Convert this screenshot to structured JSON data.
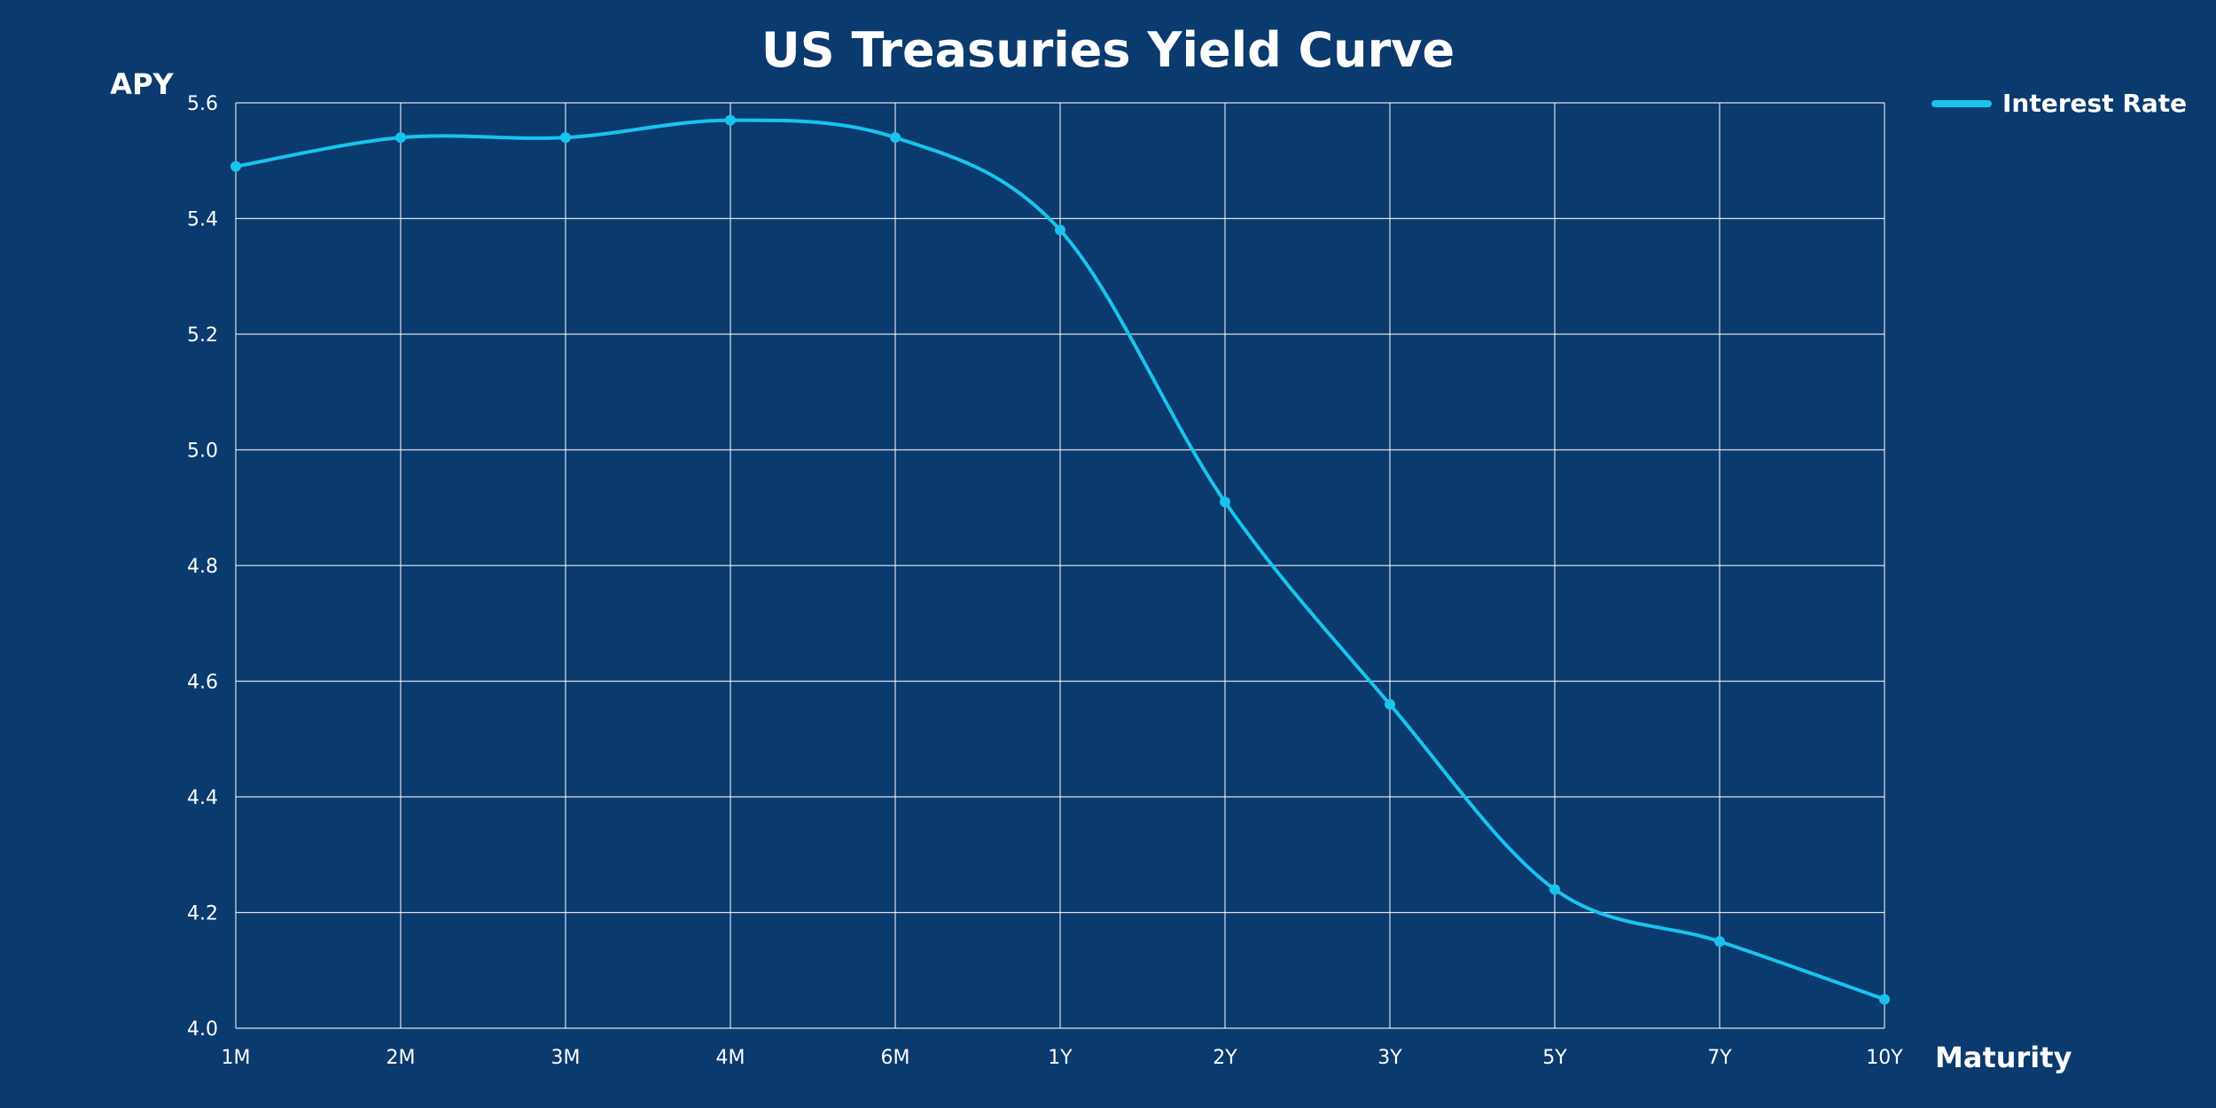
{
  "chart_data": {
    "type": "line",
    "title": "US Treasuries Yield Curve",
    "ylabel": "APY",
    "xlabel": "Maturity",
    "categories": [
      "1M",
      "2M",
      "3M",
      "4M",
      "6M",
      "1Y",
      "2Y",
      "3Y",
      "5Y",
      "7Y",
      "10Y"
    ],
    "series": [
      {
        "name": "Interest Rate",
        "values": [
          5.49,
          5.54,
          5.54,
          5.57,
          5.54,
          5.38,
          4.91,
          4.56,
          4.24,
          4.15,
          4.05
        ]
      }
    ],
    "ylim": [
      4.0,
      5.6
    ],
    "yticks": [
      "4.0",
      "4.2",
      "4.4",
      "4.6",
      "4.8",
      "5.0",
      "5.2",
      "5.4",
      "5.6"
    ],
    "grid": true,
    "legend_position": "top-right",
    "colors": {
      "background": "#0a3a6e",
      "line": "#18c4ec",
      "grid": "#ffffff",
      "text": "#ffffff"
    }
  }
}
